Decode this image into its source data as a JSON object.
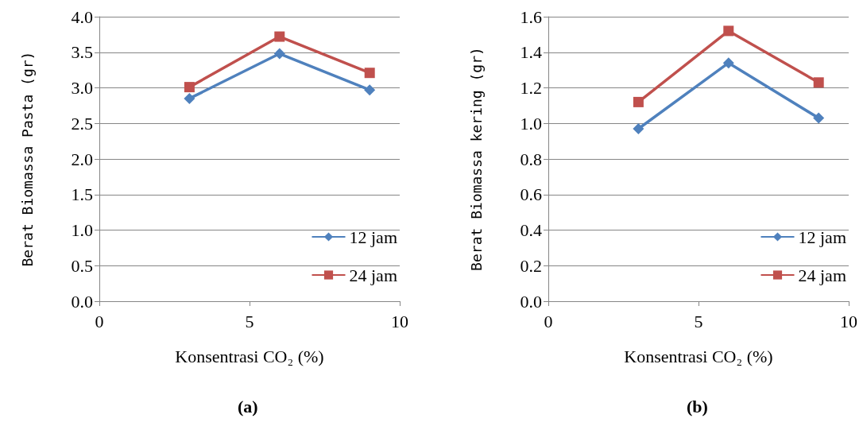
{
  "chart_data": [
    {
      "type": "line",
      "xlabel": "Konsentrasi CO₂ (%)",
      "ylabel": "Berat Biomassa Pasta (gr)",
      "annotations": [
        "(a)"
      ],
      "x": [
        3,
        6,
        9
      ],
      "xlim": [
        0,
        10
      ],
      "xticks": [
        0,
        5,
        10
      ],
      "ylim": [
        0,
        4
      ],
      "yticks": [
        {
          "value": 0,
          "label": "0.0"
        },
        0.5,
        {
          "value": 1,
          "label": "1.0"
        },
        1.5,
        {
          "value": 2,
          "label": "2.0"
        },
        2.5,
        {
          "value": 3,
          "label": "3.0"
        },
        3.5,
        {
          "value": 4,
          "label": "4.0"
        }
      ],
      "grid": "y",
      "legend": "bottom right",
      "series": [
        {
          "name": "12 jam",
          "color": "#4f81bd",
          "marker": "diamond",
          "values": [
            2.85,
            3.48,
            2.97
          ]
        },
        {
          "name": "24 jam",
          "color": "#c0504d",
          "marker": "square",
          "values": [
            3.01,
            3.72,
            3.21
          ]
        }
      ]
    },
    {
      "type": "line",
      "xlabel": "Konsentrasi CO₂ (%)",
      "ylabel": "Berat Biomassa kering (gr)",
      "annotations": [
        "(b)"
      ],
      "x": [
        3,
        6,
        9
      ],
      "xlim": [
        0,
        10
      ],
      "xticks": [
        0,
        5,
        10
      ],
      "ylim": [
        0,
        1.6
      ],
      "yticks": [
        {
          "value": 0,
          "label": "0.0"
        },
        0.2,
        0.4,
        0.6,
        0.8,
        {
          "value": 1,
          "label": "1.0"
        },
        1.2,
        1.4,
        1.6
      ],
      "grid": "y",
      "legend": "bottom right",
      "series": [
        {
          "name": "12 jam",
          "color": "#4f81bd",
          "marker": "diamond",
          "values": [
            0.97,
            1.34,
            1.03
          ]
        },
        {
          "name": "24 jam",
          "color": "#c0504d",
          "marker": "square",
          "values": [
            1.12,
            1.52,
            1.23
          ]
        }
      ]
    }
  ]
}
